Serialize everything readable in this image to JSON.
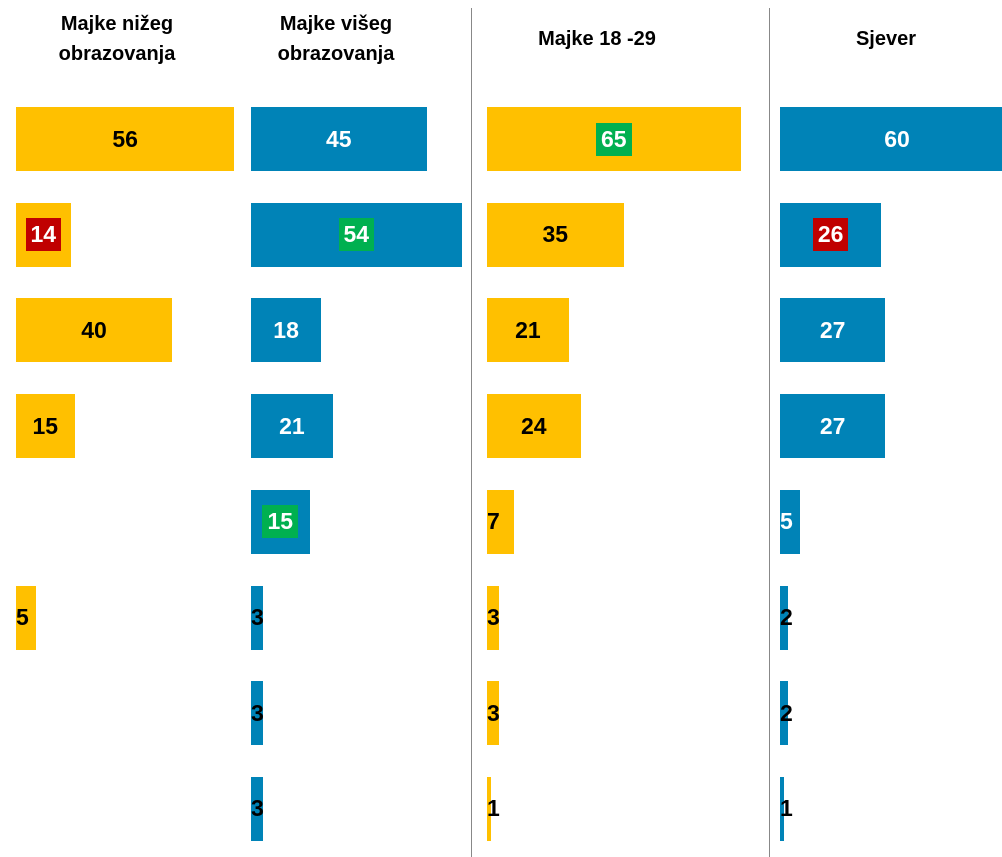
{
  "chart_data": {
    "type": "bar",
    "orientation": "horizontal",
    "charts": [
      {
        "title": "Majke nižeg obrazovanja",
        "color": "#ffc000",
        "values": [
          56,
          14,
          40,
          15,
          null,
          5,
          null,
          null
        ],
        "label_boxes": [
          null,
          "#c00000",
          null,
          null,
          null,
          null,
          null,
          null
        ]
      },
      {
        "title": "Majke višeg obrazovanja",
        "color": "#0083b7",
        "values": [
          45,
          54,
          18,
          21,
          15,
          3,
          3,
          3
        ],
        "label_boxes": [
          null,
          "#00b050",
          null,
          null,
          "#00b050",
          null,
          null,
          null
        ]
      },
      {
        "title": "Majke 18 -29",
        "color": "#ffc000",
        "values": [
          65,
          35,
          21,
          24,
          7,
          3,
          3,
          1
        ],
        "label_boxes": [
          "#00b050",
          null,
          null,
          null,
          null,
          null,
          null,
          null
        ]
      },
      {
        "title": "Sjever",
        "color": "#0083b7",
        "values": [
          60,
          26,
          27,
          27,
          5,
          2,
          2,
          1
        ],
        "label_boxes": [
          null,
          "#c00000",
          null,
          null,
          null,
          null,
          null,
          null
        ]
      }
    ]
  }
}
